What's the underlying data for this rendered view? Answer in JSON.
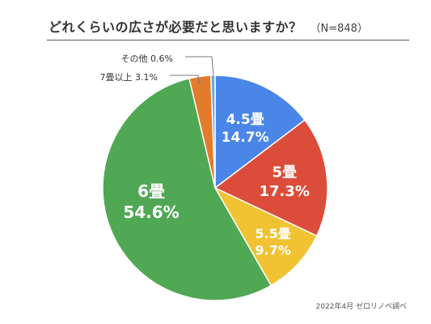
{
  "header": {
    "title": "どれくらいの広さが必要だと思いますか？",
    "sample": "（N=848）"
  },
  "chart_data": {
    "type": "pie",
    "title": "どれくらいの広さが必要だと思いますか？",
    "slices": [
      {
        "label": "4.5畳",
        "value": 14.7,
        "value_text": "14.7%",
        "color": "#4a86e8",
        "label_position": "inside"
      },
      {
        "label": "5畳",
        "value": 17.3,
        "value_text": "17.3%",
        "color": "#db4d3a",
        "label_position": "inside"
      },
      {
        "label": "5.5畳",
        "value": 9.7,
        "value_text": "9.7%",
        "color": "#f1c232",
        "label_position": "inside"
      },
      {
        "label": "6畳",
        "value": 54.6,
        "value_text": "54.6%",
        "color": "#51a854",
        "label_position": "inside"
      },
      {
        "label": "7畳以上",
        "value": 3.1,
        "value_text": "3.1%",
        "color": "#e37b2c",
        "label_position": "outside"
      },
      {
        "label": "その他",
        "value": 0.6,
        "value_text": "0.6%",
        "color": "#6fa8dc",
        "label_position": "outside"
      }
    ],
    "start_angle": "12 o'clock",
    "direction": "clockwise",
    "legend": "none"
  },
  "footer": {
    "source": "2022年4月 ゼロリノベ調べ"
  }
}
